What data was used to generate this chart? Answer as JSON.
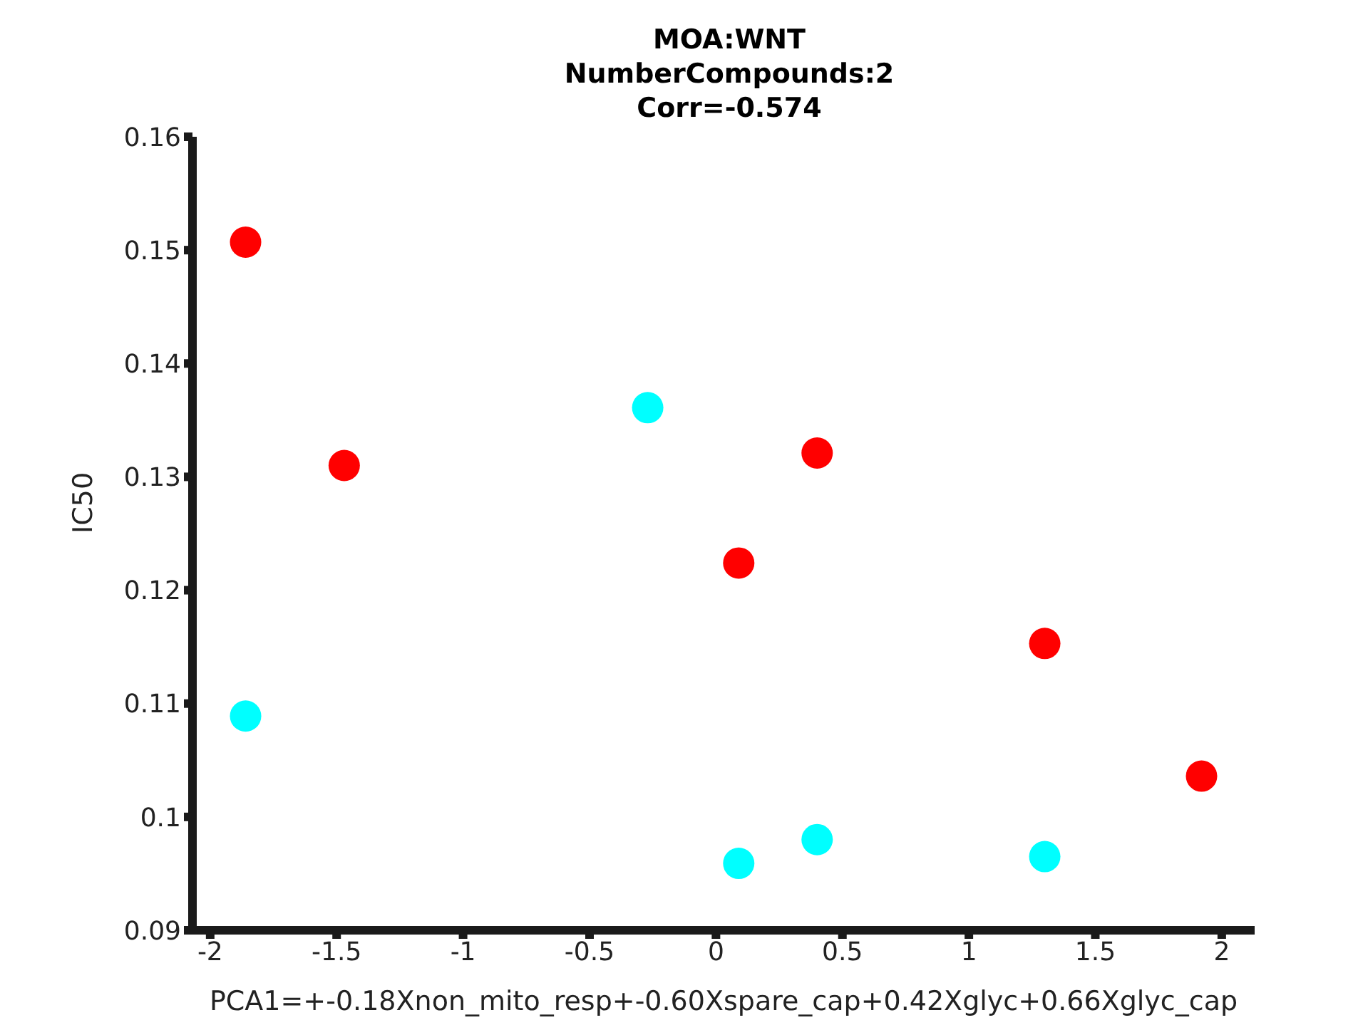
{
  "chart_data": {
    "type": "scatter",
    "title": "MOA:WNT\nNumberCompounds:2\nCorr=-0.574",
    "xlabel": "PCA1=+-0.18Xnon_mito_resp+-0.60Xspare_cap+0.42Xglyc+0.66Xglyc_cap",
    "ylabel": "IC50",
    "series": [
      {
        "color": "#ff0000",
        "x": [
          -1.86,
          -1.47,
          0.4,
          0.09,
          1.3,
          1.92
        ],
        "values": [
          0.1507,
          0.131,
          0.1321,
          0.1224,
          0.1153,
          0.1036
        ]
      },
      {
        "color": "#00ffff",
        "x": [
          -0.27,
          -1.86,
          0.09,
          0.4,
          1.3
        ],
        "values": [
          0.1361,
          0.1089,
          0.0959,
          0.098,
          0.0965
        ]
      }
    ],
    "xlim": [
      -2.07,
      2.13
    ],
    "xticks": [
      -2,
      -1.5,
      -1,
      -0.5,
      0,
      0.5,
      1,
      1.5,
      2
    ],
    "ylim": [
      0.09,
      0.16
    ],
    "yticks": [
      0.09,
      0.1,
      0.11,
      0.12,
      0.13,
      0.14,
      0.15,
      0.16
    ],
    "marker": "circle"
  }
}
